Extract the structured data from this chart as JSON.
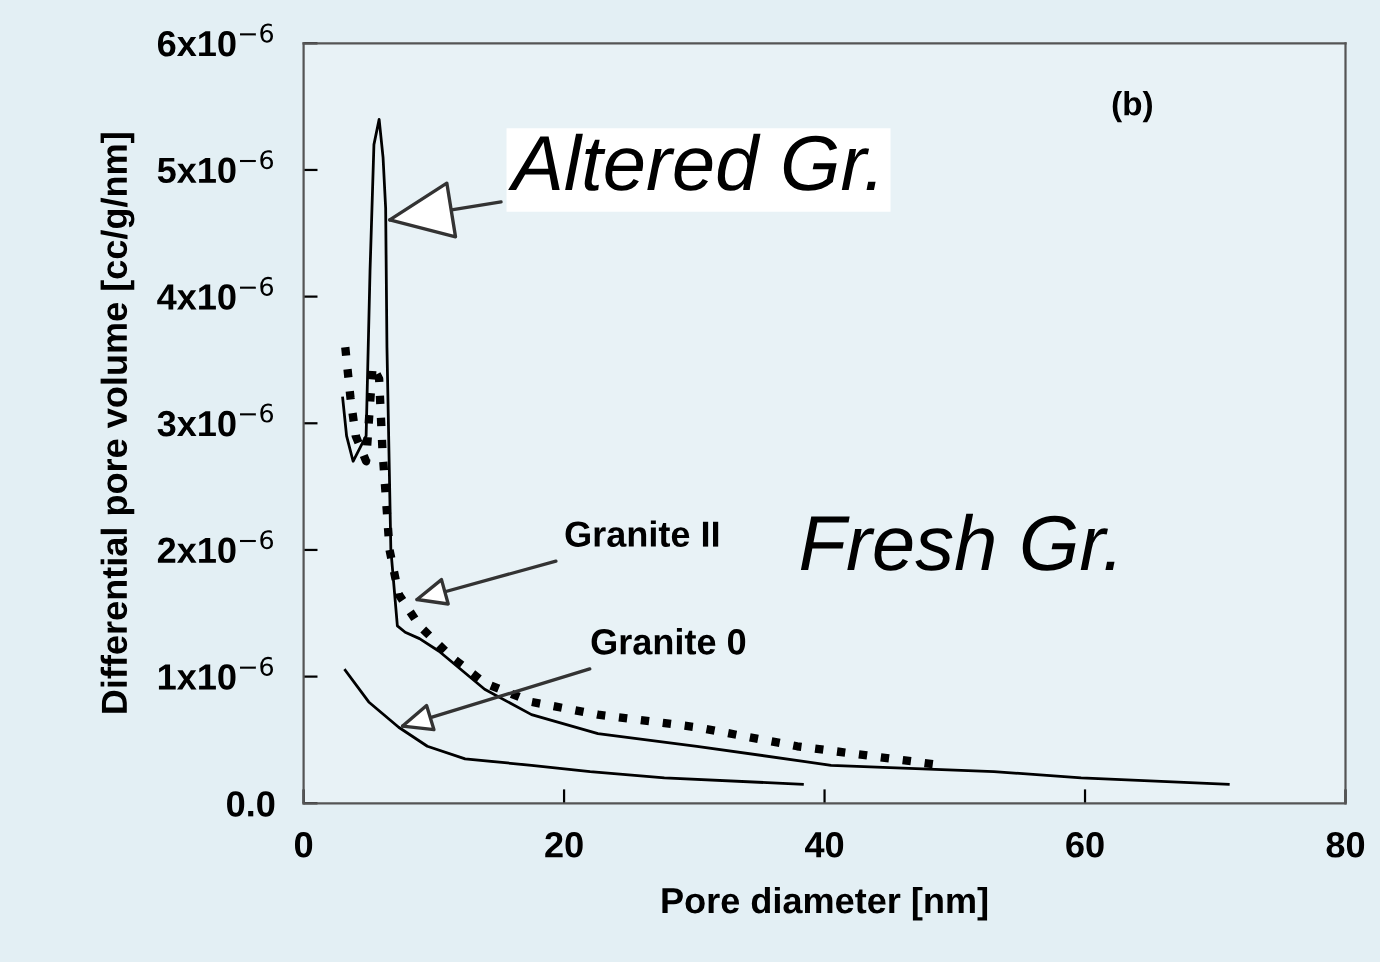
{
  "chart_data": {
    "type": "line",
    "xlabel": "Pore diameter [nm]",
    "ylabel": "Differential pore volume [cc/g/nm]",
    "xlim": [
      0,
      80
    ],
    "xticks": [
      0,
      20,
      40,
      60,
      80
    ],
    "ylim": [
      0,
      6e-06
    ],
    "yticks": [
      {
        "value": 0,
        "label": "0.0"
      },
      {
        "value": 1e-06,
        "label": "1x10$^{−6}$"
      },
      {
        "value": 2e-06,
        "label": "2x10$^{−6}$"
      },
      {
        "value": 3e-06,
        "label": "3x10$^{−6}$"
      },
      {
        "value": 4e-06,
        "label": "4x10$^{−6}$"
      },
      {
        "value": 5e-06,
        "label": "5x10$^{−6}$"
      },
      {
        "value": 6e-06,
        "label": "6x10$^{−6}$"
      }
    ],
    "grid": false,
    "legend": false,
    "marker": "none",
    "series": [
      {
        "color": "#000000",
        "line_style": "solid",
        "x": [
          3.0,
          3.3,
          3.8,
          4.3,
          4.8,
          5.1,
          5.4,
          5.8,
          6.1,
          6.3,
          6.4,
          6.7,
          7.2,
          7.8,
          8.9,
          10.4,
          13.9,
          17.5,
          22.6,
          30.2,
          40.5,
          53,
          59.7,
          71
        ],
        "values": [
          3.2e-06,
          2.9e-06,
          2.7e-06,
          2.8e-06,
          2.9e-06,
          4.2e-06,
          5.2e-06,
          5.4e-06,
          5.1e-06,
          4.7e-06,
          3.6e-06,
          2e-06,
          1.4e-06,
          1.35e-06,
          1.3e-06,
          1.2e-06,
          9e-07,
          7e-07,
          5.5e-07,
          4.5e-07,
          3e-07,
          2.5e-07,
          2e-07,
          1.5e-07
        ]
      },
      {
        "color": "#000000",
        "line_style": "dotted",
        "x": [
          3.2,
          3.6,
          4.0,
          4.8,
          5.3,
          5.8,
          6.05,
          6.6,
          7.3,
          8.9,
          11.4,
          13.9,
          17.5,
          22.6,
          30.2,
          37.9,
          49
        ],
        "values": [
          3.6e-06,
          3.2e-06,
          2.9e-06,
          2.7e-06,
          3.45e-06,
          3.35e-06,
          2.8e-06,
          2e-06,
          1.65e-06,
          1.4e-06,
          1.15e-06,
          9.5e-07,
          8e-07,
          7e-07,
          6e-07,
          4.5e-07,
          3e-07
        ]
      },
      {
        "color": "#000000",
        "line_style": "solid",
        "x": [
          3.2,
          5.0,
          7.3,
          9.5,
          12.4,
          17.5,
          22.0,
          27.7,
          38.3
        ],
        "values": [
          1.05e-06,
          8e-07,
          6e-07,
          4.5e-07,
          3.5e-07,
          3e-07,
          2.5e-07,
          2e-07,
          1.5e-07
        ]
      }
    ],
    "annotations": [
      {
        "text": "Altered Gr.",
        "x": 6.3,
        "y": 4.6e-06
      },
      {
        "text": "Granite II",
        "x": 8.4,
        "y": 1.6e-06
      },
      {
        "text": "Granite 0",
        "x": 7.3,
        "y": 6e-07
      },
      "Fresh Gr.",
      "(b)"
    ]
  }
}
